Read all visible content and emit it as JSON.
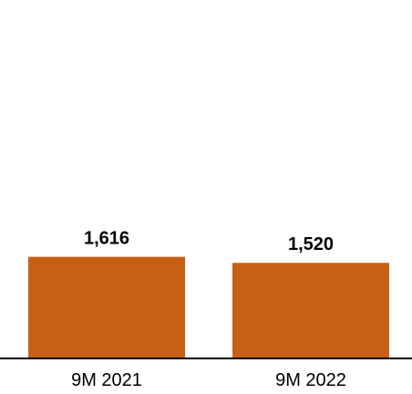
{
  "chart_data": {
    "type": "bar",
    "categories": [
      "9M 2021",
      "9M 2022"
    ],
    "values": [
      1616,
      1520
    ],
    "value_labels": [
      "1,616",
      "1,520"
    ],
    "title": "",
    "xlabel": "",
    "ylabel": "",
    "ylim": [
      0,
      5700
    ],
    "grid": false,
    "legend": "none",
    "bar_color": "#C85F16",
    "axis_color": "#000000"
  }
}
